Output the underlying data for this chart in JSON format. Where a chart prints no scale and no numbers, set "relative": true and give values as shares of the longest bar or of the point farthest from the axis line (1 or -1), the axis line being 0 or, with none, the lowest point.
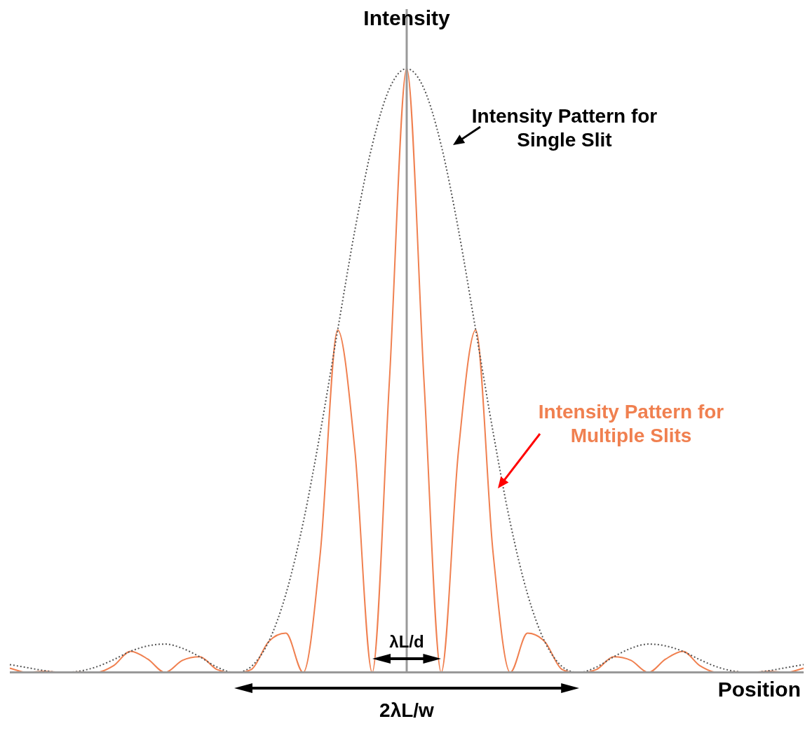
{
  "chart_data": {
    "type": "line",
    "relative": true,
    "ylabel": "Intensity",
    "xlabel": "Position",
    "legend": false,
    "marker": "none",
    "categories": [
      null,
      null,
      null,
      null,
      null,
      null,
      null,
      null,
      null,
      null,
      null,
      null,
      null,
      null,
      null,
      null,
      null,
      null,
      null,
      null,
      null,
      null,
      null,
      null,
      null,
      null,
      null,
      null,
      null,
      null,
      null,
      null,
      null,
      null,
      null,
      null,
      null,
      null,
      null,
      null,
      null,
      null,
      null,
      null,
      null,
      null,
      null
    ],
    "series": [
      {
        "name": "Intensity Pattern for Single Slit",
        "color": "#555555",
        "line_style": "dotted",
        "values": [
          0.013,
          0.008,
          0.003,
          0,
          0.002,
          0.009,
          0.021,
          0.035,
          0.044,
          0.047,
          0.04,
          0.026,
          0.009,
          0,
          0.01,
          0.051,
          0.13,
          0.248,
          0.399,
          0.567,
          0.733,
          0.873,
          0.967,
          1,
          0.967,
          0.873,
          0.733,
          0.567,
          0.399,
          0.248,
          0.13,
          0.051,
          0.01,
          0,
          0.009,
          0.026,
          0.04,
          0.047,
          0.044,
          0.035,
          0.021,
          0.009,
          0.002,
          0,
          0.003,
          0.008,
          0.013
        ]
      },
      {
        "name": "Intensity Pattern for Multiple Slits",
        "color": "#f08050",
        "line_style": "solid",
        "values": [
          0.007,
          0,
          0.002,
          0,
          0.001,
          0,
          0.011,
          0.035,
          0.022,
          0,
          0.02,
          0.026,
          0.005,
          0,
          0.005,
          0.051,
          0.065,
          0,
          0.2,
          0.567,
          0.367,
          0,
          0.484,
          1,
          0.484,
          0,
          0.367,
          0.567,
          0.2,
          0,
          0.065,
          0.051,
          0.005,
          0,
          0.005,
          0.026,
          0.02,
          0,
          0.022,
          0.035,
          0.011,
          0,
          0.001,
          0,
          0.002,
          0,
          0.007
        ]
      }
    ],
    "annotations": [
      "λL/d",
      "2λL/w"
    ]
  }
}
